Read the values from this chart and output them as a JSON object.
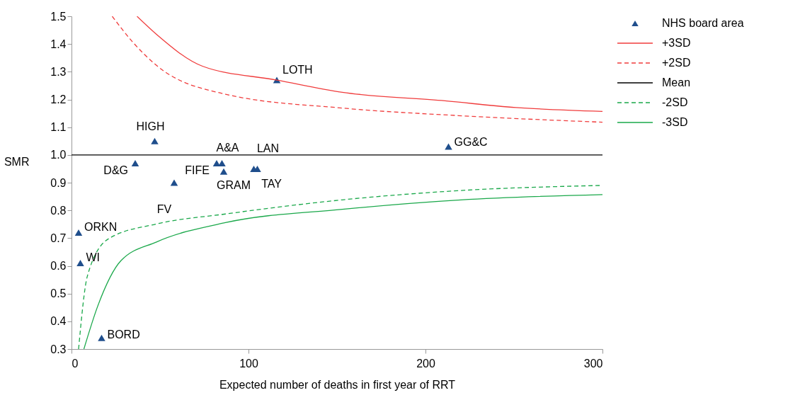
{
  "chart_data": {
    "type": "scatter",
    "xlabel": "Expected number of deaths in first year of RRT",
    "ylabel": "SMR",
    "xlim": [
      0,
      300
    ],
    "xticks": [
      0,
      100,
      200,
      300
    ],
    "ylim": [
      0.3,
      1.5
    ],
    "yticks": [
      0.3,
      0.4,
      0.5,
      0.6,
      0.7,
      0.8,
      0.9,
      {
        "value": 1.0,
        "label": "1.0"
      },
      1.1,
      1.2,
      1.3,
      1.4,
      1.5
    ],
    "grid": false,
    "legend": "right",
    "series": [
      {
        "name": "NHS board area",
        "marker": "triangle",
        "color": "#1f4e8c",
        "x": [
          116,
          47,
          36,
          82,
          85,
          86,
          103,
          105,
          58,
          213,
          4,
          5,
          17
        ],
        "values": [
          1.27,
          1.05,
          0.97,
          0.97,
          0.97,
          0.94,
          0.95,
          0.95,
          0.9,
          1.03,
          0.72,
          0.61,
          0.34
        ]
      },
      {
        "name": "+3SD",
        "type": "line",
        "line_style": "solid",
        "color": "#f03c3c",
        "x": [
          37,
          48,
          74,
          116,
          153,
          211,
          251,
          300
        ],
        "values": [
          1.5,
          1.435,
          1.32,
          1.27,
          1.226,
          1.195,
          1.171,
          1.157
        ]
      },
      {
        "name": "+2SD",
        "type": "line",
        "line_style": "dashed",
        "color": "#f03c3c",
        "x": [
          23,
          35,
          48,
          87,
          153,
          218,
          300
        ],
        "values": [
          1.5,
          1.404,
          1.323,
          1.219,
          1.169,
          1.142,
          1.118
        ]
      },
      {
        "name": "Mean",
        "type": "line",
        "line_style": "solid",
        "color": "#000000",
        "x": [
          0,
          300
        ],
        "values": [
          1.0,
          1.0
        ]
      },
      {
        "name": "-2SD",
        "type": "line",
        "line_style": "dashed",
        "color": "#1aa84a",
        "x": [
          4,
          9,
          21,
          48,
          87,
          153,
          218,
          300
        ],
        "values": [
          0.3,
          0.564,
          0.698,
          0.751,
          0.787,
          0.838,
          0.871,
          0.89
        ]
      },
      {
        "name": "-3SD",
        "type": "line",
        "line_style": "solid",
        "color": "#1aa84a",
        "x": [
          7,
          15,
          28,
          48,
          87,
          153,
          220,
          300
        ],
        "values": [
          0.3,
          0.458,
          0.619,
          0.686,
          0.756,
          0.804,
          0.838,
          0.857
        ]
      }
    ],
    "annotations": [
      {
        "text": "LOTH",
        "x": 116,
        "y": 1.27
      },
      {
        "text": "HIGH",
        "x": 47,
        "y": 1.05
      },
      {
        "text": "D&G",
        "x": 36,
        "y": 0.97
      },
      {
        "text": "FIFE",
        "x": 82,
        "y": 0.97
      },
      {
        "text": "A&A",
        "x": 85,
        "y": 0.97
      },
      {
        "text": "GRAM",
        "x": 86,
        "y": 0.94
      },
      {
        "text": "LAN",
        "x": 103,
        "y": 0.95
      },
      {
        "text": "TAY",
        "x": 105,
        "y": 0.95
      },
      {
        "text": "FV",
        "x": 58,
        "y": 0.9
      },
      {
        "text": "GG&C",
        "x": 213,
        "y": 1.03
      },
      {
        "text": "ORKN",
        "x": 4,
        "y": 0.72
      },
      {
        "text": "WI",
        "x": 5,
        "y": 0.61
      },
      {
        "text": "BORD",
        "x": 17,
        "y": 0.34
      }
    ]
  }
}
